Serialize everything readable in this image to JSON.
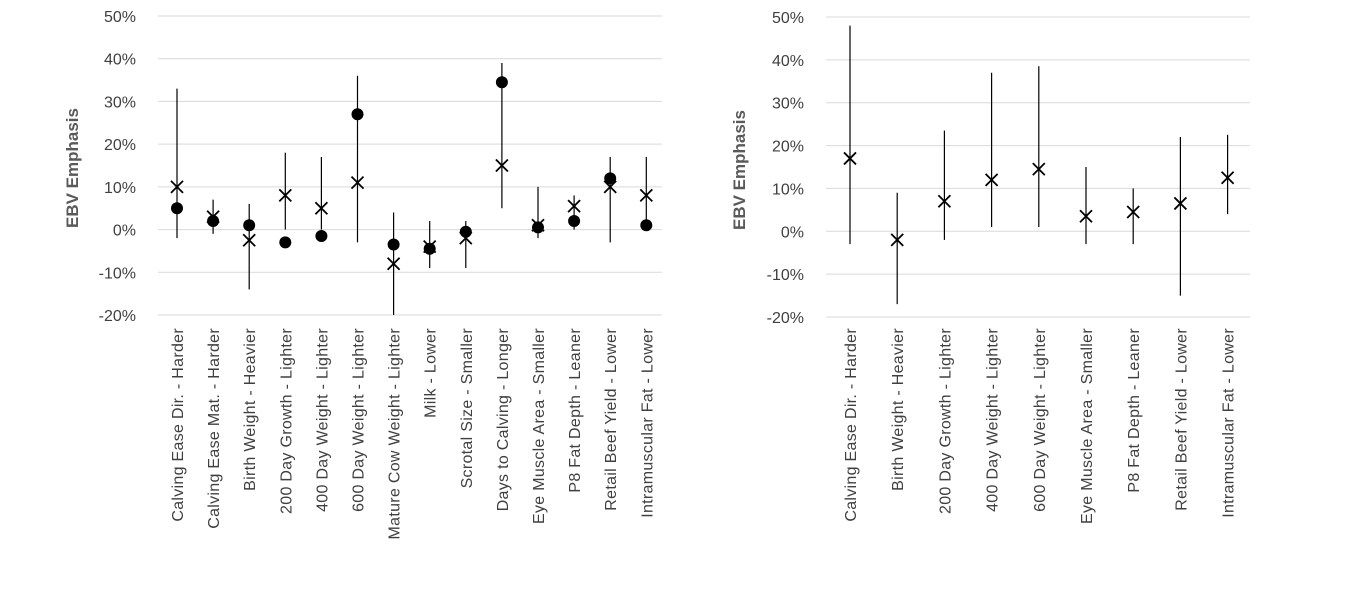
{
  "chart_data": [
    {
      "type": "scatter",
      "ylabel": "EBV Emphasis",
      "ylim": [
        -0.2,
        0.5
      ],
      "y_ticks": [
        "-20%",
        "-10%",
        "0%",
        "10%",
        "20%",
        "30%",
        "40%",
        "50%"
      ],
      "grid": true,
      "categories": [
        "Calving Ease Dir. - Harder",
        "Calving Ease Mat. - Harder",
        "Birth Weight - Heavier",
        "200 Day Growth - Lighter",
        "400 Day Weight - Lighter",
        "600 Day Weight - Lighter",
        "Mature Cow Weight - Lighter",
        "Milk - Lower",
        "Scrotal Size - Smaller",
        "Days to Calving - Longer",
        "Eye Muscle Area - Smaller",
        "P8 Fat Depth - Leaner",
        "Retail Beef Yield - Lower",
        "Intramuscular Fat - Lower"
      ],
      "series": [
        {
          "marker": "x",
          "values": [
            0.1,
            0.03,
            -0.025,
            0.08,
            0.05,
            0.11,
            -0.08,
            -0.04,
            -0.02,
            0.15,
            0.01,
            0.055,
            0.1,
            0.08
          ]
        },
        {
          "marker": "dot",
          "values": [
            0.05,
            0.02,
            0.01,
            -0.03,
            -0.015,
            0.27,
            -0.035,
            -0.045,
            -0.005,
            0.345,
            0.005,
            0.02,
            0.12,
            0.01
          ]
        }
      ],
      "error_ranges": [
        [
          -0.02,
          0.33
        ],
        [
          -0.01,
          0.07
        ],
        [
          -0.14,
          0.06
        ],
        [
          0.0,
          0.18
        ],
        [
          0.0,
          0.17
        ],
        [
          -0.03,
          0.36
        ],
        [
          -0.2,
          0.04
        ],
        [
          -0.09,
          0.02
        ],
        [
          -0.09,
          0.02
        ],
        [
          0.05,
          0.39
        ],
        [
          -0.02,
          0.1
        ],
        [
          0.0,
          0.08
        ],
        [
          -0.03,
          0.17
        ],
        [
          0.0,
          0.17
        ]
      ]
    },
    {
      "type": "scatter",
      "ylabel": "EBV Emphasis",
      "ylim": [
        -0.2,
        0.5
      ],
      "y_ticks": [
        "-20%",
        "-10%",
        "0%",
        "10%",
        "20%",
        "30%",
        "40%",
        "50%"
      ],
      "grid": true,
      "categories": [
        "Calving Ease Dir. - Harder",
        "Birth Weight - Heavier",
        "200 Day Growth - Lighter",
        "400 Day Weight - Lighter",
        "600 Day Weight - Lighter",
        "Eye Muscle Area - Smaller",
        "P8 Fat Depth - Leaner",
        "Retail Beef Yield - Lower",
        "Intramuscular Fat - Lower"
      ],
      "series": [
        {
          "marker": "x",
          "values": [
            0.17,
            -0.02,
            0.07,
            0.12,
            0.145,
            0.035,
            0.045,
            0.065,
            0.125
          ]
        }
      ],
      "error_ranges": [
        [
          -0.03,
          0.48
        ],
        [
          -0.17,
          0.09
        ],
        [
          -0.02,
          0.235
        ],
        [
          0.01,
          0.37
        ],
        [
          0.01,
          0.385
        ],
        [
          -0.03,
          0.15
        ],
        [
          -0.03,
          0.1
        ],
        [
          -0.15,
          0.22
        ],
        [
          0.04,
          0.225
        ]
      ]
    }
  ]
}
